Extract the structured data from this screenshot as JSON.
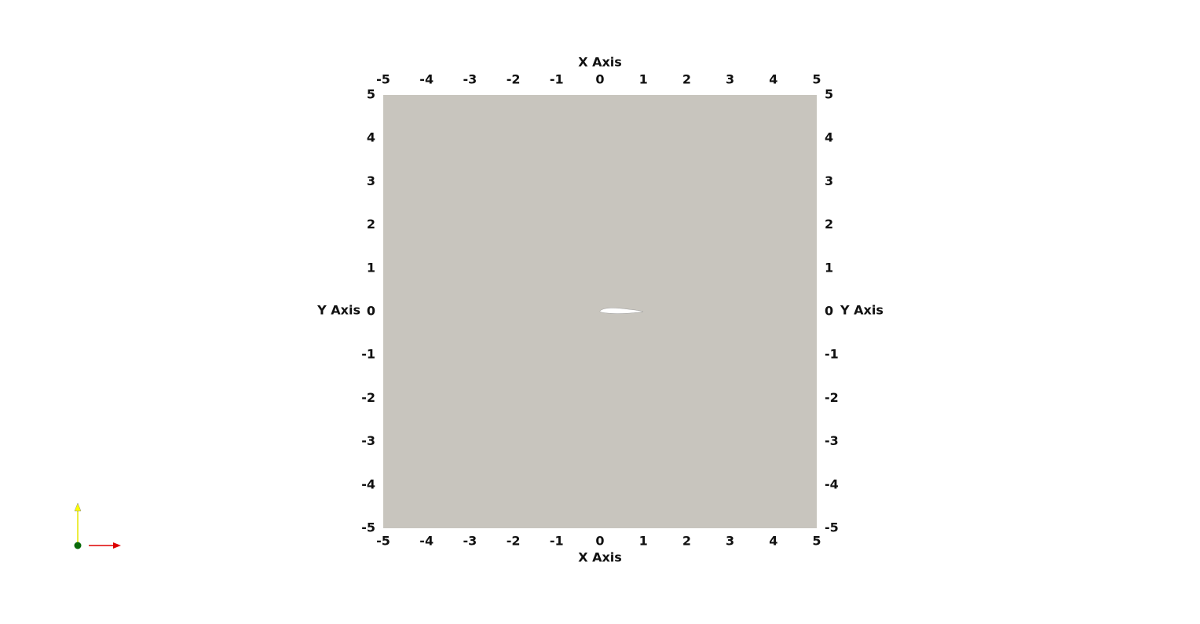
{
  "chart_data": {
    "type": "mesh",
    "x_label": "X Axis",
    "y_label": "Y Axis",
    "xlim": [
      -5,
      5
    ],
    "ylim": [
      -5,
      5
    ],
    "xticks": [
      -5,
      -4,
      -3,
      -2,
      -1,
      0,
      1,
      2,
      3,
      4,
      5
    ],
    "yticks": [
      -5,
      -4,
      -3,
      -2,
      -1,
      0,
      1,
      2,
      3,
      4,
      5
    ],
    "color": "#c8c5be"
  }
}
